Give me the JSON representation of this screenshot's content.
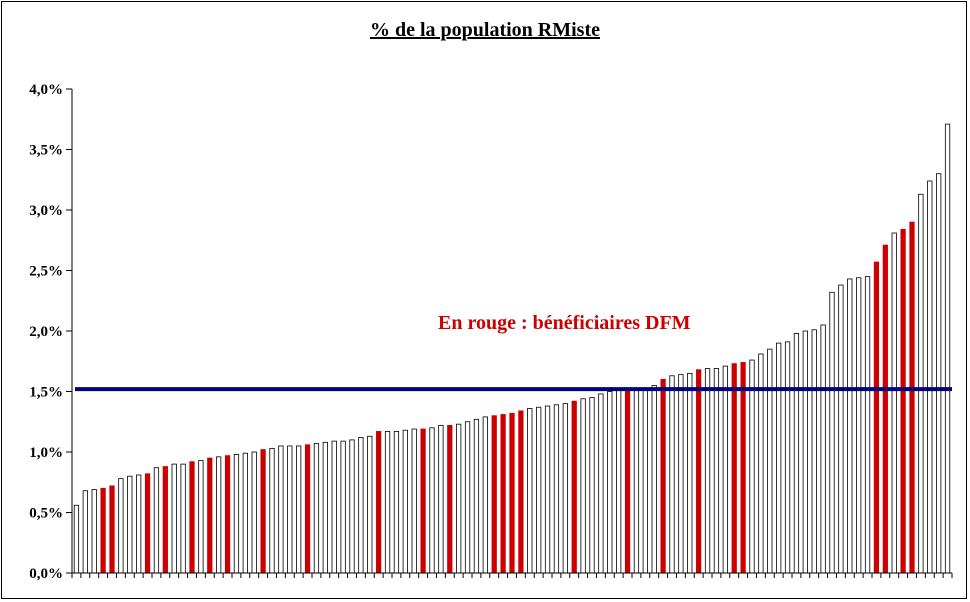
{
  "chart_data": {
    "type": "bar",
    "title": "% de la population RMiste",
    "annotation": "En rouge : bénéficiaires DFM",
    "ylim": [
      0,
      4
    ],
    "yticks": [
      "0,0%",
      "0,5%",
      "1,0%",
      "1,5%",
      "2,0%",
      "2,5%",
      "3,0%",
      "3,5%",
      "4,0%"
    ],
    "reference_line": 1.52,
    "colors": {
      "highlight": "#cc0000",
      "normal": "#ffffff",
      "reference": "#000080"
    },
    "values": [
      0.56,
      0.68,
      0.69,
      0.7,
      0.72,
      0.78,
      0.8,
      0.81,
      0.82,
      0.87,
      0.88,
      0.9,
      0.9,
      0.92,
      0.93,
      0.95,
      0.96,
      0.97,
      0.98,
      0.99,
      1.0,
      1.02,
      1.03,
      1.05,
      1.05,
      1.05,
      1.06,
      1.07,
      1.08,
      1.09,
      1.09,
      1.1,
      1.12,
      1.13,
      1.17,
      1.17,
      1.17,
      1.18,
      1.19,
      1.19,
      1.2,
      1.22,
      1.22,
      1.23,
      1.25,
      1.27,
      1.29,
      1.3,
      1.31,
      1.32,
      1.34,
      1.36,
      1.37,
      1.38,
      1.39,
      1.4,
      1.42,
      1.44,
      1.45,
      1.48,
      1.5,
      1.52,
      1.52,
      1.52,
      1.53,
      1.55,
      1.6,
      1.63,
      1.64,
      1.65,
      1.68,
      1.69,
      1.69,
      1.71,
      1.73,
      1.74,
      1.76,
      1.81,
      1.85,
      1.9,
      1.91,
      1.98,
      2.0,
      2.01,
      2.05,
      2.32,
      2.38,
      2.43,
      2.44,
      2.45,
      2.57,
      2.71,
      2.81,
      2.84,
      2.9,
      3.13,
      3.24,
      3.3,
      3.71
    ],
    "highlighted": [
      3,
      4,
      8,
      10,
      13,
      15,
      17,
      21,
      26,
      34,
      39,
      42,
      47,
      48,
      49,
      50,
      56,
      62,
      66,
      70,
      74,
      75,
      90,
      91,
      93,
      94
    ]
  }
}
